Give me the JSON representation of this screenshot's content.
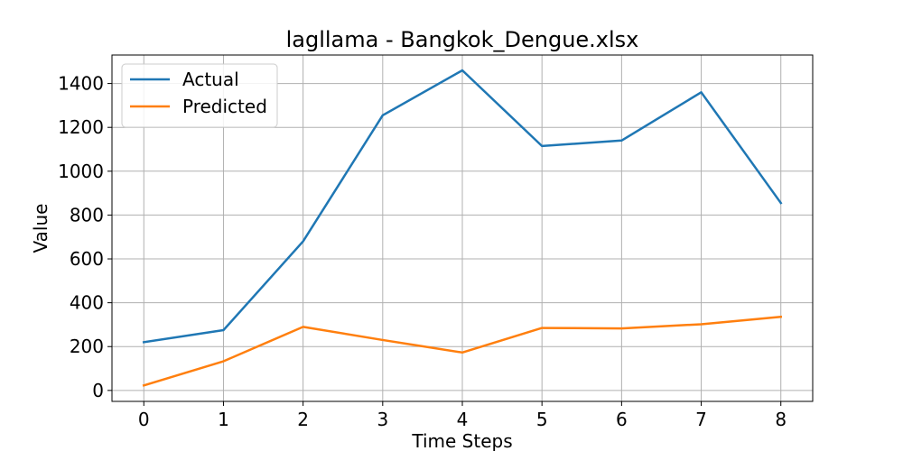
{
  "chart_data": {
    "type": "line",
    "title": "lagllama - Bangkok_Dengue.xlsx",
    "xlabel": "Time Steps",
    "ylabel": "Value",
    "x": [
      0,
      1,
      2,
      3,
      4,
      5,
      6,
      7,
      8
    ],
    "xticks": [
      "0",
      "1",
      "2",
      "3",
      "4",
      "5",
      "6",
      "7",
      "8"
    ],
    "yticks": [
      "0",
      "200",
      "400",
      "600",
      "800",
      "1000",
      "1200",
      "1400"
    ],
    "ytick_values": [
      0,
      200,
      400,
      600,
      800,
      1000,
      1200,
      1400
    ],
    "xlim": [
      -0.4,
      8.4
    ],
    "ylim": [
      -50,
      1530
    ],
    "grid": true,
    "legend_position": "top-left",
    "series": [
      {
        "name": "Actual",
        "color": "#1f77b4",
        "values": [
          220,
          275,
          680,
          1255,
          1460,
          1115,
          1140,
          1360,
          855
        ]
      },
      {
        "name": "Predicted",
        "color": "#ff7f0e",
        "values": [
          23,
          133,
          290,
          230,
          173,
          285,
          283,
          302,
          336
        ]
      }
    ]
  }
}
